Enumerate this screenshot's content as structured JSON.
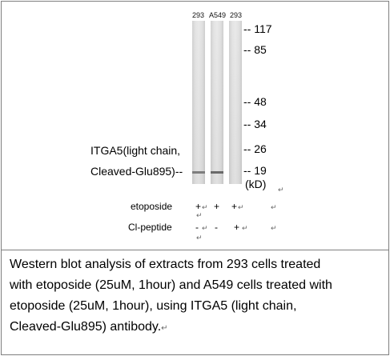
{
  "lanes": [
    {
      "label": "293",
      "band_intensity": 0.55
    },
    {
      "label": "A549",
      "band_intensity": 0.7
    },
    {
      "label": "293",
      "band_intensity": 0.0
    }
  ],
  "markers": [
    {
      "label": "-- 117",
      "kda": 117
    },
    {
      "label": "-- 85",
      "kda": 85
    },
    {
      "label": "-- 48",
      "kda": 48
    },
    {
      "label": "-- 34",
      "kda": 34
    },
    {
      "label": "-- 26",
      "kda": 26
    },
    {
      "label": "-- 19",
      "kda": 19
    }
  ],
  "unit": "(kD)",
  "protein_label": {
    "line1": "ITGA5(light chain,",
    "line2": "Cleaved-Glu895)--"
  },
  "treatments": {
    "etoposide": {
      "label": "etoposide",
      "values": [
        "+",
        "+",
        "+"
      ]
    },
    "cl_peptide": {
      "label": "Cl-peptide",
      "values": [
        "-",
        "-",
        "+"
      ]
    }
  },
  "paragraph_mark": "↵",
  "caption": {
    "line1": "Western blot analysis of extracts from 293 cells treated",
    "line2": "with etoposide (25uM, 1hour) and A549 cells treated with",
    "line3": "etoposide (25uM, 1hour), using ITGA5 (light chain,",
    "line4": "Cleaved-Glu895) antibody."
  }
}
